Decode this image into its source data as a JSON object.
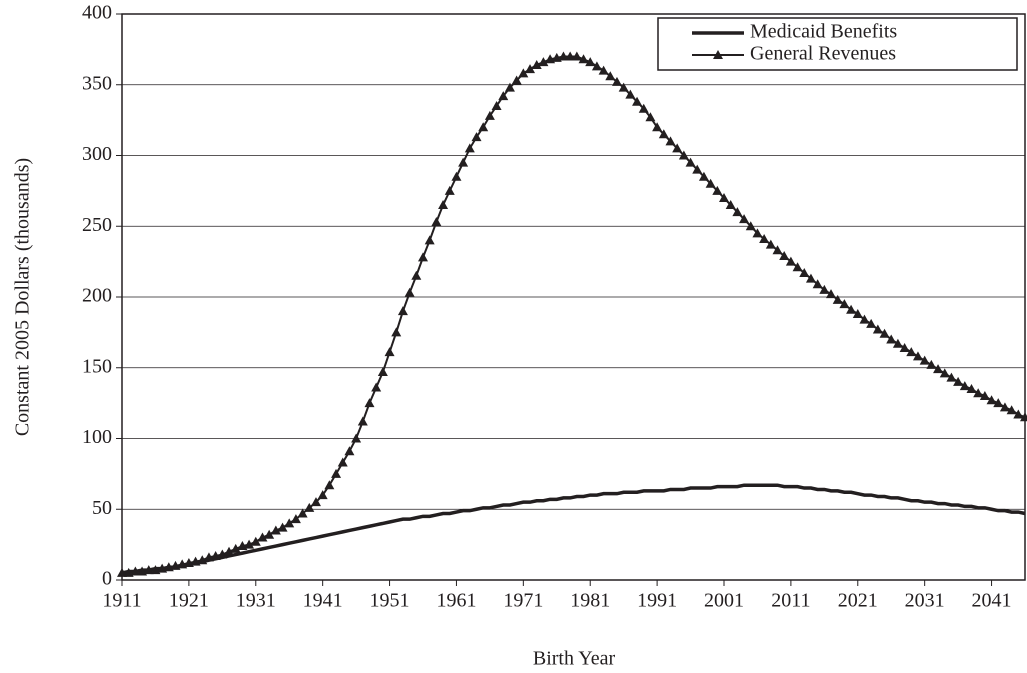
{
  "chart_data": {
    "type": "line",
    "x_label": "Birth Year",
    "y_label": "Constant 2005 Dollars (thousands)",
    "x": [
      1911,
      1912,
      1913,
      1914,
      1915,
      1916,
      1917,
      1918,
      1919,
      1920,
      1921,
      1922,
      1923,
      1924,
      1925,
      1926,
      1927,
      1928,
      1929,
      1930,
      1931,
      1932,
      1933,
      1934,
      1935,
      1936,
      1937,
      1938,
      1939,
      1940,
      1941,
      1942,
      1943,
      1944,
      1945,
      1946,
      1947,
      1948,
      1949,
      1950,
      1951,
      1952,
      1953,
      1954,
      1955,
      1956,
      1957,
      1958,
      1959,
      1960,
      1961,
      1962,
      1963,
      1964,
      1965,
      1966,
      1967,
      1968,
      1969,
      1970,
      1971,
      1972,
      1973,
      1974,
      1975,
      1976,
      1977,
      1978,
      1979,
      1980,
      1981,
      1982,
      1983,
      1984,
      1985,
      1986,
      1987,
      1988,
      1989,
      1990,
      1991,
      1992,
      1993,
      1994,
      1995,
      1996,
      1997,
      1998,
      1999,
      2000,
      2001,
      2002,
      2003,
      2004,
      2005,
      2006,
      2007,
      2008,
      2009,
      2010,
      2011,
      2012,
      2013,
      2014,
      2015,
      2016,
      2017,
      2018,
      2019,
      2020,
      2021,
      2022,
      2023,
      2024,
      2025,
      2026,
      2027,
      2028,
      2029,
      2030,
      2031,
      2032,
      2033,
      2034,
      2035,
      2036,
      2037,
      2038,
      2039,
      2040,
      2041,
      2042,
      2043,
      2044,
      2045,
      2046
    ],
    "series": [
      {
        "name": "Medicaid Benefits",
        "color": "#231f20",
        "marker": "none",
        "values": [
          5,
          6,
          6,
          7,
          7,
          8,
          8,
          9,
          9,
          10,
          11,
          12,
          13,
          14,
          15,
          16,
          17,
          18,
          19,
          20,
          21,
          22,
          23,
          24,
          25,
          26,
          27,
          28,
          29,
          30,
          31,
          32,
          33,
          34,
          35,
          36,
          37,
          38,
          39,
          40,
          41,
          42,
          43,
          43,
          44,
          45,
          45,
          46,
          47,
          47,
          48,
          49,
          49,
          50,
          51,
          51,
          52,
          53,
          53,
          54,
          55,
          55,
          56,
          56,
          57,
          57,
          58,
          58,
          59,
          59,
          60,
          60,
          61,
          61,
          61,
          62,
          62,
          62,
          63,
          63,
          63,
          63,
          64,
          64,
          64,
          65,
          65,
          65,
          65,
          66,
          66,
          66,
          66,
          67,
          67,
          67,
          67,
          67,
          67,
          66,
          66,
          66,
          65,
          65,
          64,
          64,
          63,
          63,
          62,
          62,
          61,
          60,
          60,
          59,
          59,
          58,
          58,
          57,
          56,
          56,
          55,
          55,
          54,
          54,
          53,
          53,
          52,
          52,
          51,
          51,
          50,
          49,
          49,
          48,
          48,
          47
        ]
      },
      {
        "name": "General Revenues",
        "color": "#231f20",
        "marker": "triangle",
        "values": [
          5,
          5,
          6,
          6,
          7,
          7,
          8,
          9,
          10,
          11,
          12,
          13,
          14,
          16,
          17,
          18,
          20,
          22,
          24,
          25,
          27,
          30,
          32,
          35,
          37,
          40,
          43,
          47,
          51,
          55,
          60,
          67,
          75,
          83,
          91,
          100,
          112,
          125,
          136,
          147,
          161,
          175,
          190,
          203,
          215,
          228,
          240,
          253,
          265,
          275,
          285,
          295,
          305,
          313,
          320,
          328,
          335,
          342,
          348,
          353,
          358,
          361,
          364,
          366,
          368,
          369,
          370,
          370,
          370,
          368,
          366,
          363,
          360,
          356,
          352,
          348,
          343,
          338,
          333,
          327,
          320,
          315,
          310,
          305,
          300,
          295,
          290,
          285,
          280,
          275,
          270,
          265,
          260,
          255,
          250,
          245,
          241,
          237,
          233,
          229,
          225,
          221,
          217,
          213,
          209,
          205,
          202,
          198,
          195,
          191,
          188,
          184,
          181,
          177,
          174,
          170,
          167,
          164,
          161,
          158,
          155,
          152,
          149,
          146,
          143,
          140,
          137,
          135,
          132,
          130,
          127,
          125,
          122,
          120,
          117,
          115
        ]
      }
    ],
    "xlim": [
      1911,
      2046
    ],
    "xticks": [
      1911,
      1921,
      1931,
      1941,
      1951,
      1961,
      1971,
      1981,
      1991,
      2001,
      2011,
      2021,
      2031,
      2041
    ],
    "ylim": [
      0,
      400
    ],
    "yticks": [
      0,
      50,
      100,
      150,
      200,
      250,
      300,
      350,
      400
    ],
    "grid": true,
    "legend": "upper right"
  }
}
